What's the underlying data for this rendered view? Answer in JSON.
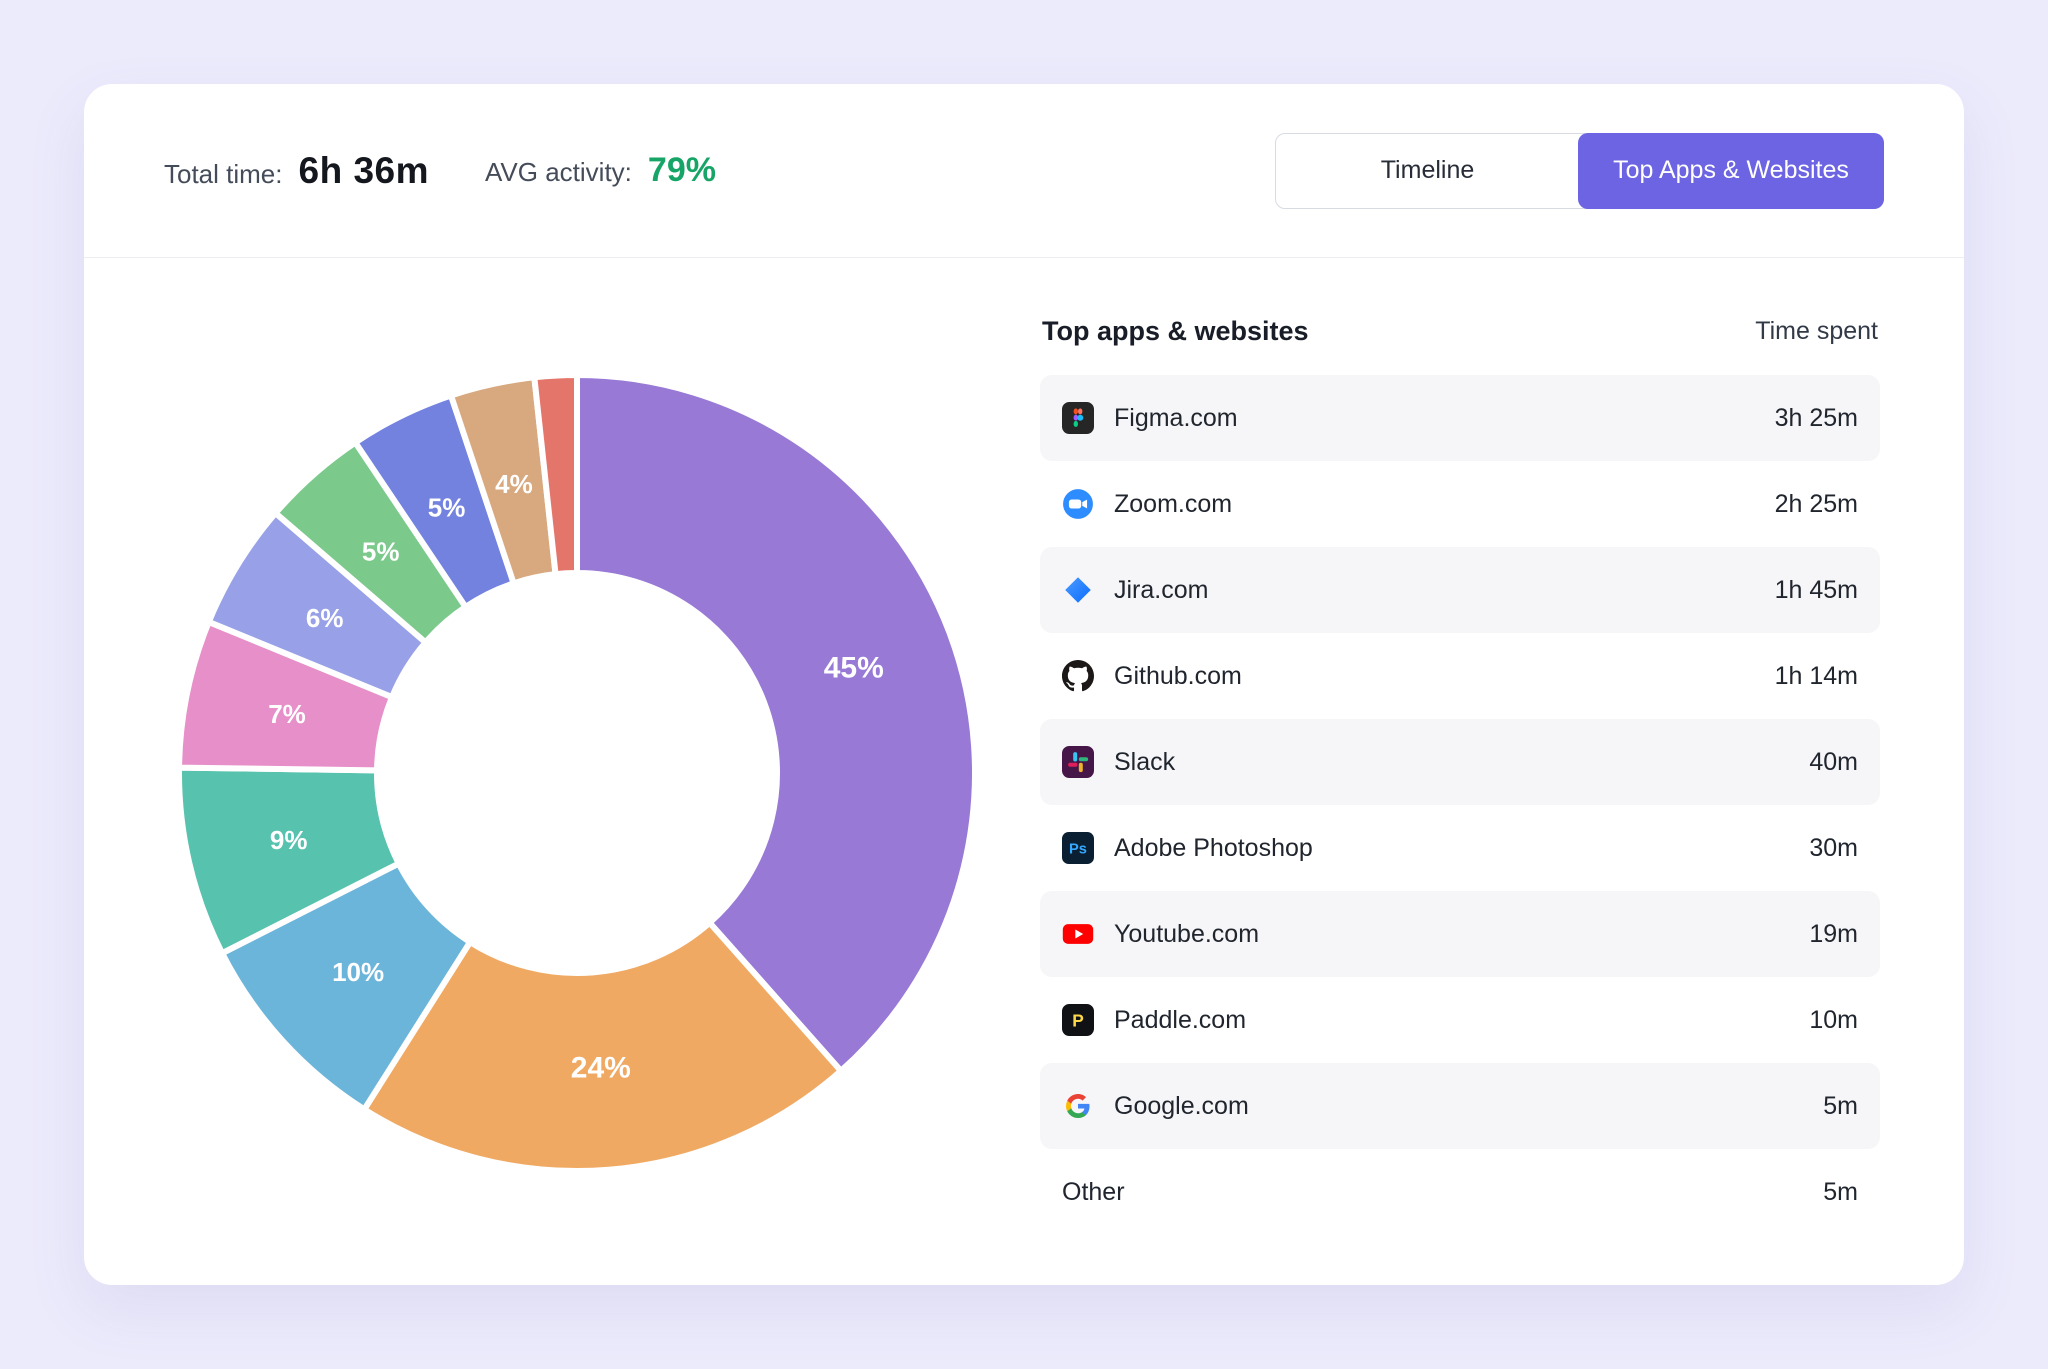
{
  "header": {
    "total_time_label": "Total time:",
    "total_time_value": "6h 36m",
    "avg_activity_label": "AVG activity:",
    "avg_activity_value": "79%",
    "tabs": [
      {
        "label": "Timeline",
        "active": false
      },
      {
        "label": "Top Apps & Websites",
        "active": true
      }
    ]
  },
  "colors": {
    "accent": "#6c64e2",
    "activity_green": "#17a567",
    "page_background": "#ecebfc"
  },
  "chart_data": {
    "type": "pie",
    "donut": true,
    "start_angle_deg": 0,
    "direction": "clockwise",
    "legend": false,
    "unit": "%",
    "slices": [
      {
        "label": "45%",
        "value": 45,
        "color": "#9879d6"
      },
      {
        "label": "24%",
        "value": 24,
        "color": "#f0a962"
      },
      {
        "label": "10%",
        "value": 10,
        "color": "#6cb5da"
      },
      {
        "label": "9%",
        "value": 9,
        "color": "#57c2ae"
      },
      {
        "label": "7%",
        "value": 7,
        "color": "#e68fc9"
      },
      {
        "label": "6%",
        "value": 6,
        "color": "#98a1e7"
      },
      {
        "label": "5%",
        "value": 5,
        "color": "#7cc98c"
      },
      {
        "label": "5%",
        "value": 5,
        "color": "#7282de"
      },
      {
        "label": "4%",
        "value": 4,
        "color": "#d8a87f"
      },
      {
        "label": "",
        "value": 2,
        "color": "#e4756b"
      }
    ]
  },
  "list": {
    "title": "Top apps & websites",
    "time_header": "Time spent",
    "items": [
      {
        "icon": "figma-icon",
        "name": "Figma.com",
        "time": "3h 25m"
      },
      {
        "icon": "zoom-icon",
        "name": "Zoom.com",
        "time": "2h 25m"
      },
      {
        "icon": "jira-icon",
        "name": "Jira.com",
        "time": "1h 45m"
      },
      {
        "icon": "github-icon",
        "name": "Github.com",
        "time": "1h 14m"
      },
      {
        "icon": "slack-icon",
        "name": "Slack",
        "time": "40m"
      },
      {
        "icon": "photoshop-icon",
        "name": "Adobe Photoshop",
        "time": "30m"
      },
      {
        "icon": "youtube-icon",
        "name": "Youtube.com",
        "time": "19m"
      },
      {
        "icon": "paddle-icon",
        "name": "Paddle.com",
        "time": "10m"
      },
      {
        "icon": "google-icon",
        "name": "Google.com",
        "time": "5m"
      },
      {
        "icon": null,
        "name": "Other",
        "time": "5m"
      }
    ]
  }
}
